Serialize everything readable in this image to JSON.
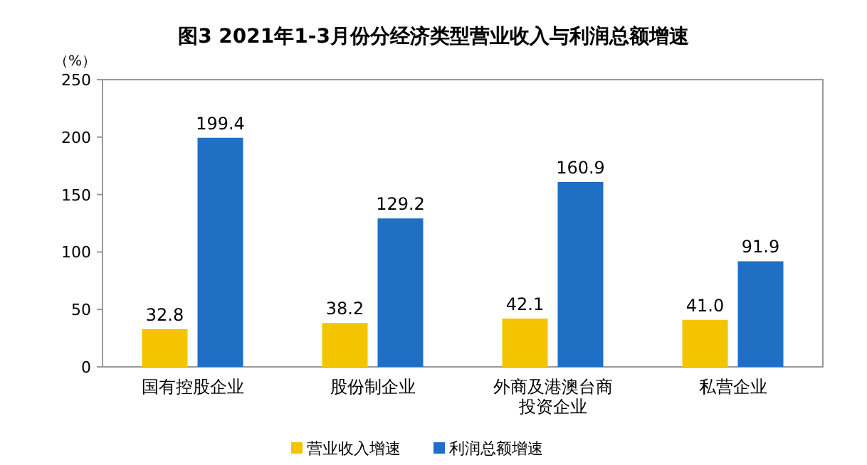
{
  "chart_data": {
    "type": "bar",
    "title": "图3  2021年1-3月份分经济类型营业收入与利润总额增速",
    "ylabel": "（%）",
    "categories": [
      "国有控股企业",
      "股份制企业",
      "外商及港澳台商投资企业",
      "私营企业"
    ],
    "series": [
      {
        "name": "营业收入增速",
        "color": "#f5c400",
        "values": [
          32.8,
          38.2,
          42.1,
          41.0
        ],
        "value_labels": [
          "32.8",
          "38.2",
          "42.1",
          "41.0"
        ]
      },
      {
        "name": "利润总额增速",
        "color": "#1f6fc5",
        "values": [
          199.4,
          129.2,
          160.9,
          91.9
        ],
        "value_labels": [
          "199.4",
          "129.2",
          "160.9",
          "91.9"
        ]
      }
    ],
    "ylim": [
      0,
      250
    ],
    "yticks": [
      0,
      50,
      100,
      150,
      200,
      250
    ],
    "legend": "bottom",
    "grid": false
  }
}
